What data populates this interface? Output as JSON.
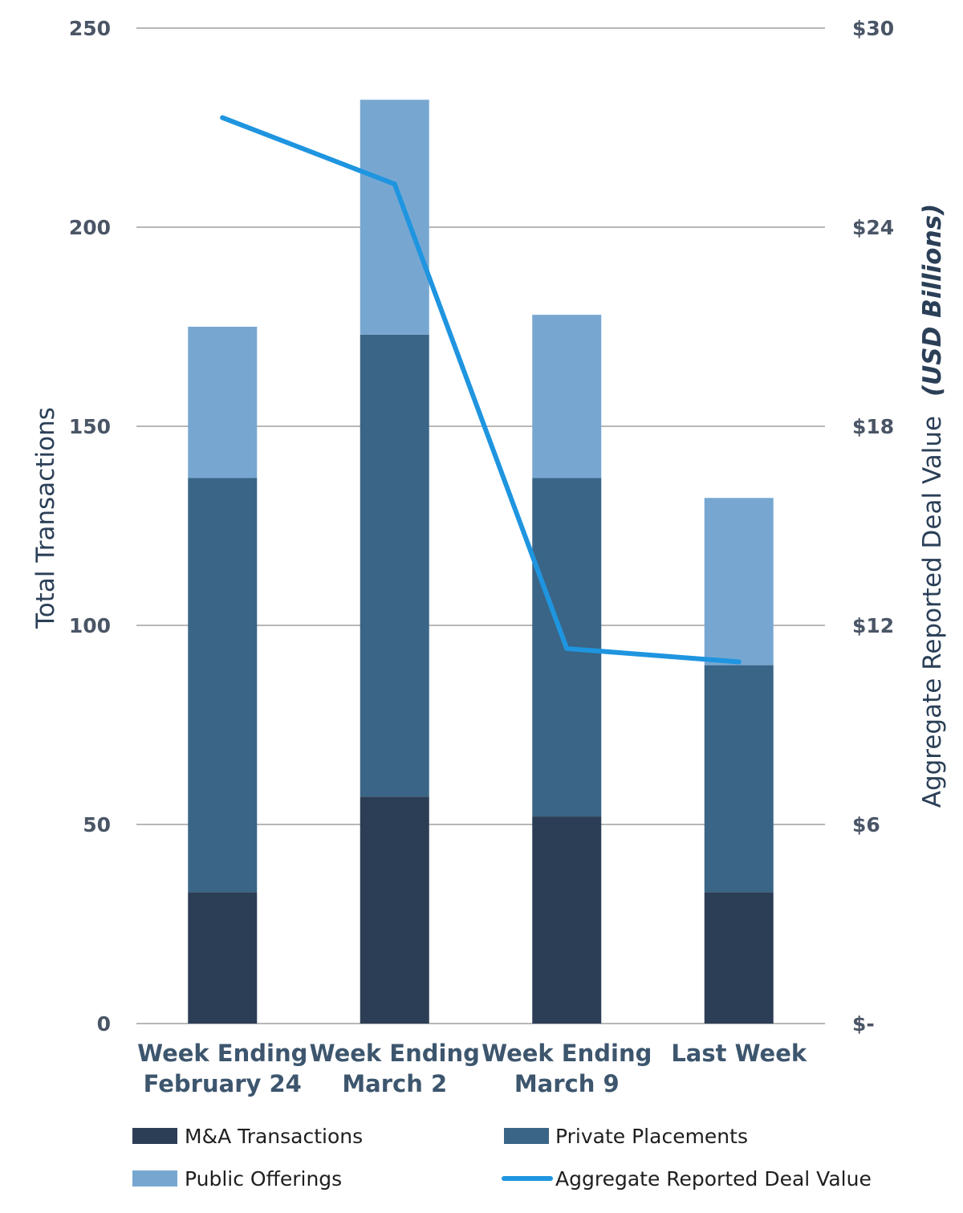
{
  "chart_data": {
    "type": "bar",
    "stacked": true,
    "categories": [
      [
        "Week Ending",
        "February 24"
      ],
      [
        "Week Ending",
        "March 2"
      ],
      [
        "Week Ending",
        "March 9"
      ],
      [
        "Last Week"
      ]
    ],
    "series": [
      {
        "name": "M&A Transactions",
        "type": "bar",
        "axis": "left",
        "color": "#2c3e55",
        "values": [
          33,
          57,
          52,
          33
        ]
      },
      {
        "name": "Private Placements",
        "type": "bar",
        "axis": "left",
        "color": "#3a6586",
        "values": [
          104,
          116,
          85,
          57
        ]
      },
      {
        "name": "Public Offerings",
        "type": "bar",
        "axis": "left",
        "color": "#77a7d1",
        "values": [
          38,
          59,
          41,
          42
        ]
      },
      {
        "name": "Aggregate Reported Deal Value",
        "type": "line",
        "axis": "right",
        "color": "#1f95e0",
        "values": [
          27.3,
          25.3,
          11.3,
          10.9
        ]
      }
    ],
    "y_left": {
      "label": "Total Transactions",
      "ylim": [
        0,
        250
      ],
      "ticks": [
        0,
        50,
        100,
        150,
        200,
        250
      ],
      "tick_labels": [
        "0",
        "50",
        "100",
        "150",
        "200",
        "250"
      ]
    },
    "y_right": {
      "label": "Aggregate Reported Deal Value",
      "label_unit": "(USD Billions)",
      "ylim": [
        0,
        30
      ],
      "ticks": [
        0,
        6,
        12,
        18,
        24,
        30
      ],
      "tick_labels": [
        "$-",
        "$6",
        "$12",
        "$18",
        "$24",
        "$30"
      ]
    },
    "grid": true,
    "legend_position": "bottom"
  }
}
